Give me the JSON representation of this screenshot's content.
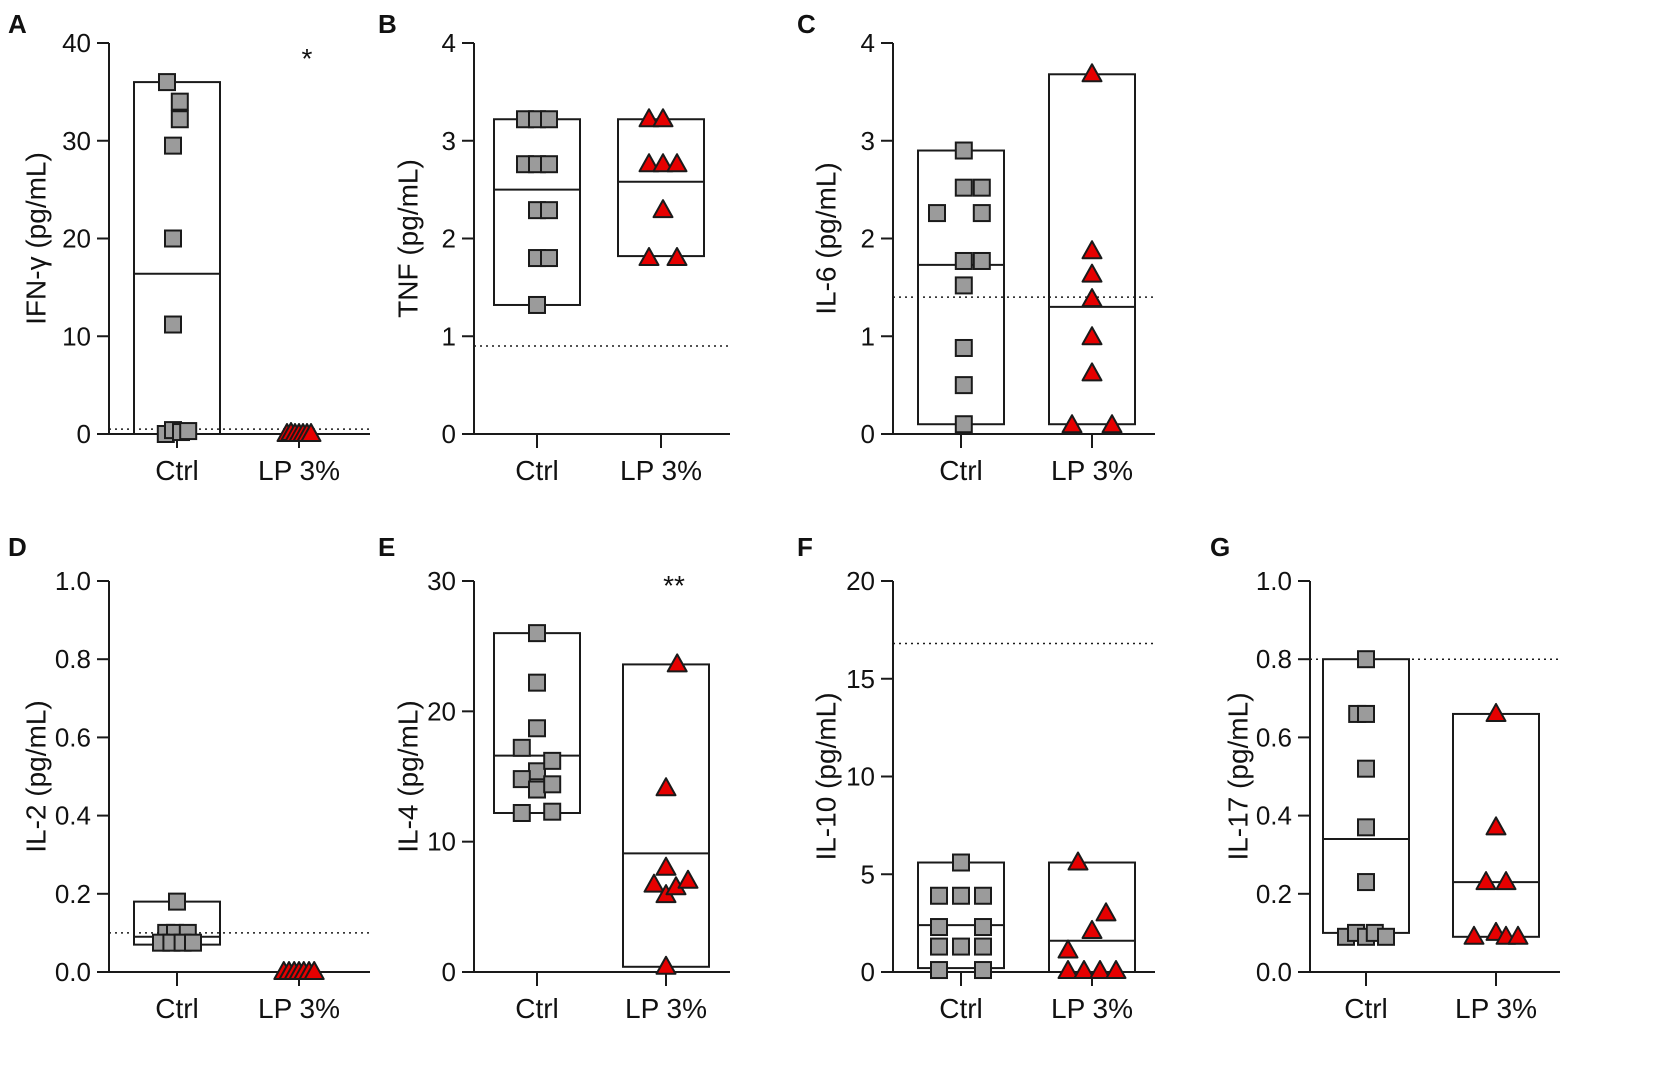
{
  "figure": {
    "colors": {
      "ctrl_fill": "#9b9b9b",
      "lp_fill": "#e60000",
      "stroke": "#1a1a1a",
      "axis": "#1a1a1a"
    },
    "marker_shapes": {
      "Ctrl": "square",
      "LP 3%": "triangle"
    }
  },
  "chart_data": [
    {
      "panel": "A",
      "type": "scatter-box",
      "ylabel": "IFN-γ (pg/mL)",
      "ylim": [
        0,
        40
      ],
      "yticks": [
        0,
        10,
        20,
        30,
        40
      ],
      "ytick_labels": [
        "0",
        "10",
        "20",
        "30",
        "40"
      ],
      "categories": [
        "Ctrl",
        "LP 3%"
      ],
      "detection_limit": 0.5,
      "groups": [
        {
          "name": "Ctrl",
          "box": {
            "min": 0,
            "max": 36,
            "median": 16.4
          },
          "points": [
            [
              -0.25,
              36
            ],
            [
              0.07,
              34
            ],
            [
              0.07,
              32.2
            ],
            [
              -0.1,
              29.5
            ],
            [
              -0.1,
              20
            ],
            [
              -0.1,
              11.2
            ],
            [
              -0.28,
              0
            ],
            [
              -0.1,
              0.4
            ],
            [
              0.1,
              0.2
            ],
            [
              0.28,
              0.3
            ]
          ]
        },
        {
          "name": "LP 3%",
          "box": null,
          "significance": "*",
          "points": [
            [
              -0.3,
              0
            ],
            [
              -0.2,
              0.1
            ],
            [
              -0.1,
              0
            ],
            [
              0,
              0
            ],
            [
              0.1,
              0
            ],
            [
              0.2,
              0
            ],
            [
              0.3,
              0
            ]
          ]
        }
      ]
    },
    {
      "panel": "B",
      "type": "scatter-box",
      "ylabel": "TNF (pg/mL)",
      "ylim": [
        0,
        4
      ],
      "yticks": [
        0,
        1,
        2,
        3,
        4
      ],
      "ytick_labels": [
        "0",
        "1",
        "2",
        "3",
        "4"
      ],
      "categories": [
        "Ctrl",
        "LP 3%"
      ],
      "detection_limit": 0.9,
      "groups": [
        {
          "name": "Ctrl",
          "box": {
            "min": 1.32,
            "max": 3.22,
            "median": 2.5
          },
          "points": [
            [
              -0.3,
              3.22
            ],
            [
              0,
              3.22
            ],
            [
              0.3,
              3.22
            ],
            [
              -0.3,
              2.76
            ],
            [
              0,
              2.76
            ],
            [
              0.3,
              2.76
            ],
            [
              0,
              2.29
            ],
            [
              0.3,
              2.29
            ],
            [
              0,
              1.8
            ],
            [
              0.3,
              1.8
            ],
            [
              0,
              1.32
            ]
          ]
        },
        {
          "name": "LP 3%",
          "box": {
            "min": 1.82,
            "max": 3.22,
            "median": 2.58
          },
          "points": [
            [
              -0.3,
              3.22
            ],
            [
              0.05,
              3.22
            ],
            [
              -0.3,
              2.76
            ],
            [
              0.05,
              2.76
            ],
            [
              0.4,
              2.76
            ],
            [
              0.05,
              2.29
            ],
            [
              -0.3,
              1.8
            ],
            [
              0.4,
              1.8
            ]
          ]
        }
      ]
    },
    {
      "panel": "C",
      "type": "scatter-box",
      "ylabel": "IL-6 (pg/mL)",
      "ylim": [
        0,
        4
      ],
      "yticks": [
        0,
        1,
        2,
        3,
        4
      ],
      "ytick_labels": [
        "0",
        "1",
        "2",
        "3",
        "4"
      ],
      "categories": [
        "Ctrl",
        "LP 3%"
      ],
      "detection_limit": 1.4,
      "groups": [
        {
          "name": "Ctrl",
          "box": {
            "min": 0.1,
            "max": 2.9,
            "median": 1.73
          },
          "points": [
            [
              0.07,
              2.9
            ],
            [
              -0.6,
              2.26
            ],
            [
              0.07,
              2.52
            ],
            [
              0.52,
              2.52
            ],
            [
              0.52,
              2.26
            ],
            [
              0.07,
              1.77
            ],
            [
              0.52,
              1.77
            ],
            [
              0.07,
              1.52
            ],
            [
              0.07,
              0.88
            ],
            [
              0.07,
              0.5
            ],
            [
              0.07,
              0.1
            ]
          ]
        },
        {
          "name": "LP 3%",
          "box": {
            "min": 0.1,
            "max": 3.68,
            "median": 1.3
          },
          "points": [
            [
              0,
              3.68
            ],
            [
              0,
              1.87
            ],
            [
              0,
              1.63
            ],
            [
              0,
              1.38
            ],
            [
              0,
              0.99
            ],
            [
              0,
              0.62
            ],
            [
              -0.5,
              0.09
            ],
            [
              0.5,
              0.09
            ]
          ]
        }
      ]
    },
    {
      "panel": "D",
      "type": "scatter-box",
      "ylabel": "IL-2 (pg/mL)",
      "ylim": [
        0,
        1
      ],
      "yticks": [
        0,
        0.2,
        0.4,
        0.6,
        0.8,
        1.0
      ],
      "ytick_labels": [
        "0.0",
        "0.2",
        "0.4",
        "0.6",
        "0.8",
        "1.0"
      ],
      "categories": [
        "Ctrl",
        "LP 3%"
      ],
      "detection_limit": 0.1,
      "groups": [
        {
          "name": "Ctrl",
          "box": {
            "min": 0.07,
            "max": 0.18,
            "median": 0.09
          },
          "points": [
            [
              0,
              0.18
            ],
            [
              -0.27,
              0.1
            ],
            [
              -0.05,
              0.1
            ],
            [
              0.27,
              0.1
            ],
            [
              -0.4,
              0.075
            ],
            [
              -0.14,
              0.075
            ],
            [
              0.14,
              0.075
            ],
            [
              0.4,
              0.075
            ]
          ]
        },
        {
          "name": "LP 3%",
          "box": null,
          "points": [
            [
              -0.38,
              0
            ],
            [
              -0.25,
              0
            ],
            [
              -0.12,
              0
            ],
            [
              0,
              0
            ],
            [
              0.12,
              0
            ],
            [
              0.25,
              0
            ],
            [
              0.38,
              0
            ]
          ]
        }
      ]
    },
    {
      "panel": "E",
      "type": "scatter-box",
      "ylabel": "IL-4 (pg/mL)",
      "ylim": [
        0,
        30
      ],
      "yticks": [
        0,
        10,
        20,
        30
      ],
      "ytick_labels": [
        "0",
        "10",
        "20",
        "30"
      ],
      "categories": [
        "Ctrl",
        "LP 3%"
      ],
      "detection_limit": null,
      "groups": [
        {
          "name": "Ctrl",
          "box": {
            "min": 12.2,
            "max": 26,
            "median": 16.6
          },
          "points": [
            [
              0,
              26
            ],
            [
              0,
              22.2
            ],
            [
              0,
              18.7
            ],
            [
              -0.38,
              17.2
            ],
            [
              0,
              15.4
            ],
            [
              0.38,
              16.2
            ],
            [
              -0.38,
              14.8
            ],
            [
              0,
              14
            ],
            [
              0.38,
              14.4
            ],
            [
              -0.38,
              12.2
            ],
            [
              0.38,
              12.3
            ]
          ]
        },
        {
          "name": "LP 3%",
          "box": {
            "min": 0.4,
            "max": 23.6,
            "median": 9.1
          },
          "significance": "**",
          "points": [
            [
              0.28,
              23.6
            ],
            [
              0,
              14.1
            ],
            [
              0,
              8
            ],
            [
              -0.3,
              6.7
            ],
            [
              0,
              5.9
            ],
            [
              0.25,
              6.5
            ],
            [
              0.55,
              7
            ],
            [
              0,
              0.4
            ]
          ]
        }
      ]
    },
    {
      "panel": "F",
      "type": "scatter-box",
      "ylabel": "IL-10 (pg/mL)",
      "ylim": [
        0,
        20
      ],
      "yticks": [
        0,
        5,
        10,
        15,
        20
      ],
      "ytick_labels": [
        "0",
        "5",
        "10",
        "15",
        "20"
      ],
      "categories": [
        "Ctrl",
        "LP 3%"
      ],
      "detection_limit": 16.8,
      "groups": [
        {
          "name": "Ctrl",
          "box": {
            "min": 0.2,
            "max": 5.6,
            "median": 2.4
          },
          "points": [
            [
              0,
              5.6
            ],
            [
              -0.55,
              3.9
            ],
            [
              0,
              3.9
            ],
            [
              0.55,
              3.9
            ],
            [
              -0.55,
              2.3
            ],
            [
              0.55,
              2.3
            ],
            [
              -0.55,
              1.3
            ],
            [
              0,
              1.3
            ],
            [
              0.55,
              1.3
            ],
            [
              -0.55,
              0.1
            ],
            [
              0.55,
              0.1
            ]
          ]
        },
        {
          "name": "LP 3%",
          "box": {
            "min": 0,
            "max": 5.6,
            "median": 1.6
          },
          "points": [
            [
              -0.35,
              5.6
            ],
            [
              0.35,
              3
            ],
            [
              0,
              2.1
            ],
            [
              -0.6,
              1.1
            ],
            [
              -0.6,
              0.05
            ],
            [
              -0.2,
              0.05
            ],
            [
              0.2,
              0.05
            ],
            [
              0.6,
              0.05
            ]
          ]
        }
      ]
    },
    {
      "panel": "G",
      "type": "scatter-box",
      "ylabel": "IL-17 (pg/mL)",
      "ylim": [
        0,
        1
      ],
      "yticks": [
        0,
        0.2,
        0.4,
        0.6,
        0.8,
        1.0
      ],
      "ytick_labels": [
        "0.0",
        "0.2",
        "0.4",
        "0.6",
        "0.8",
        "1.0"
      ],
      "categories": [
        "Ctrl",
        "LP 3%"
      ],
      "detection_limit": 0.8,
      "groups": [
        {
          "name": "Ctrl",
          "box": {
            "min": 0.1,
            "max": 0.8,
            "median": 0.34
          },
          "points": [
            [
              0,
              0.8
            ],
            [
              -0.22,
              0.66
            ],
            [
              0,
              0.66
            ],
            [
              0,
              0.52
            ],
            [
              0,
              0.37
            ],
            [
              0,
              0.23
            ],
            [
              -0.5,
              0.09
            ],
            [
              -0.25,
              0.1
            ],
            [
              0,
              0.09
            ],
            [
              0.22,
              0.1
            ],
            [
              0.5,
              0.09
            ]
          ]
        },
        {
          "name": "LP 3%",
          "box": {
            "min": 0.09,
            "max": 0.66,
            "median": 0.23
          },
          "points": [
            [
              0,
              0.66
            ],
            [
              0,
              0.37
            ],
            [
              -0.25,
              0.23
            ],
            [
              0.25,
              0.23
            ],
            [
              -0.55,
              0.09
            ],
            [
              0,
              0.1
            ],
            [
              0.25,
              0.09
            ],
            [
              0.55,
              0.09
            ]
          ]
        }
      ]
    }
  ]
}
